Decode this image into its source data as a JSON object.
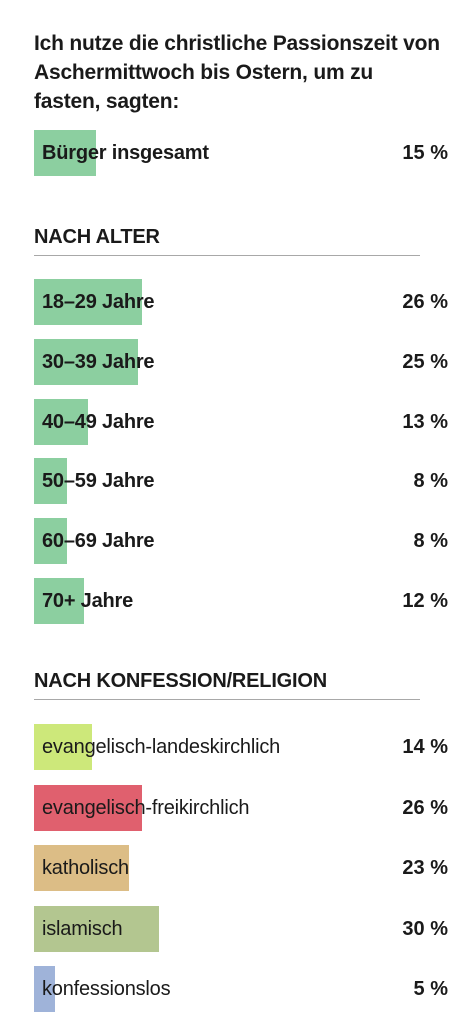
{
  "chart_data": {
    "type": "bar",
    "title": "Ich nutze die christliche Passionszeit von Aschermittwoch bis Ostern, um zu fasten, sagten:",
    "unit": "%",
    "total": {
      "label": "Bürger insgesamt",
      "value": 15,
      "value_text": "15 %",
      "color": "#8ccfa0"
    },
    "groups": [
      {
        "heading": "NACH ALTER",
        "label_weight": "bold",
        "categories": [
          "18–29 Jahre",
          "30–39 Jahre",
          "40–49 Jahre",
          "50–59 Jahre",
          "60–69 Jahre",
          "70+ Jahre"
        ],
        "values": [
          26,
          25,
          13,
          8,
          8,
          12
        ],
        "value_texts": [
          "26 %",
          "25 %",
          "13 %",
          "8 %",
          "8 %",
          "12 %"
        ],
        "colors": [
          "#8ccfa0",
          "#8ccfa0",
          "#8ccfa0",
          "#8ccfa0",
          "#8ccfa0",
          "#8ccfa0"
        ]
      },
      {
        "heading": "NACH KONFESSION/RELIGION",
        "label_weight": "normal",
        "categories": [
          "evangelisch-landeskirchlich",
          "evangelisch-freikirchlich",
          "katholisch",
          "islamisch",
          "konfessionslos"
        ],
        "values": [
          14,
          26,
          23,
          30,
          5
        ],
        "value_texts": [
          "14 %",
          "26 %",
          "23 %",
          "30 %",
          "5 %"
        ],
        "colors": [
          "#cde87a",
          "#e0606e",
          "#dcbd86",
          "#b3c690",
          "#9fb3d9"
        ]
      }
    ]
  }
}
